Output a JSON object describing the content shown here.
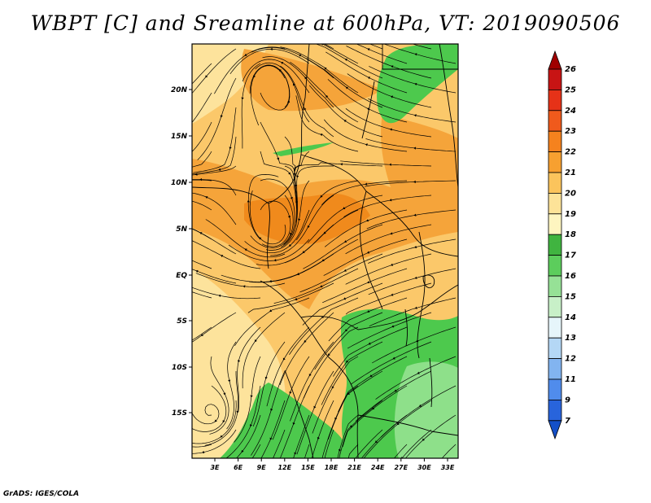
{
  "title": "WBPT [C] and Sreamline at 600hPa, VT: 2019090506",
  "credit": "GrADS: IGES/COLA",
  "map": {
    "lat_labels": [
      "20N",
      "15N",
      "10N",
      "5N",
      "EQ",
      "5S",
      "10S",
      "15S"
    ],
    "lon_labels": [
      "3E",
      "6E",
      "9E",
      "12E",
      "15E",
      "18E",
      "21E",
      "24E",
      "27E",
      "30E",
      "33E"
    ],
    "colors": {
      "orange_dark": "#f08a1c",
      "orange": "#f5a43a",
      "tan": "#fbc86a",
      "pale": "#fde39c",
      "green": "#4dc94d",
      "light_green": "#8ee08a"
    }
  },
  "colorbar": {
    "labels": [
      "26",
      "25",
      "24",
      "23",
      "22",
      "21",
      "20",
      "19",
      "18",
      "17",
      "16",
      "15",
      "14",
      "13",
      "12",
      "11",
      "9",
      "7"
    ],
    "colors": [
      "#a00000",
      "#c81414",
      "#e63218",
      "#f05a1c",
      "#f5821e",
      "#f7a030",
      "#fbc45c",
      "#fde398",
      "#fef5c0",
      "#40b440",
      "#5ccd5c",
      "#96e196",
      "#c8f0c8",
      "#e6f5fa",
      "#b4d7f5",
      "#82b4f0",
      "#508cec",
      "#2864dc",
      "#1450c8"
    ]
  }
}
